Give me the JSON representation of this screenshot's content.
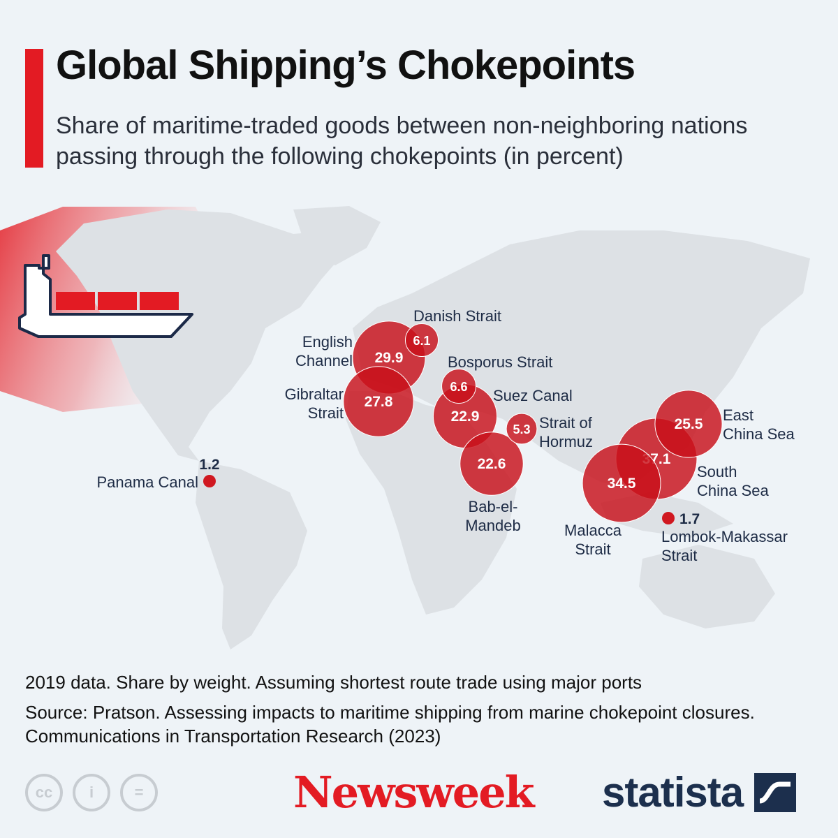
{
  "title": "Global Shipping’s Chokepoints",
  "subtitle": "Share of maritime-traded goods between non-neighboring nations passing through the following chokepoints (in percent)",
  "chart_data": {
    "type": "bubble-map",
    "unit": "percent",
    "points": [
      {
        "name": "Danish Strait",
        "value": 6.1,
        "value_label": "6.1"
      },
      {
        "name": "English Channel",
        "value": 29.9,
        "value_label": "29.9"
      },
      {
        "name": "Gibraltar Strait",
        "value": 27.8,
        "value_label": "27.8"
      },
      {
        "name": "Bosporus Strait",
        "value": 6.6,
        "value_label": "6.6"
      },
      {
        "name": "Suez Canal",
        "value": 22.9,
        "value_label": "22.9"
      },
      {
        "name": "Strait of Hormuz",
        "value": 5.3,
        "value_label": "5.3"
      },
      {
        "name": "Bab-el-Mandeb",
        "value": 22.6,
        "value_label": "22.6"
      },
      {
        "name": "Panama Canal",
        "value": 1.2,
        "value_label": "1.2"
      },
      {
        "name": "East China Sea",
        "value": 25.5,
        "value_label": "25.5"
      },
      {
        "name": "South China Sea",
        "value": 37.1,
        "value_label": "37.1"
      },
      {
        "name": "Malacca Strait",
        "value": 34.5,
        "value_label": "34.5"
      },
      {
        "name": "Lombok-Makassar Strait",
        "value": 1.7,
        "value_label": "1.7"
      }
    ],
    "labels": {
      "Danish Strait": [
        "Danish Strait"
      ],
      "English Channel": [
        "English",
        "Channel"
      ],
      "Gibraltar Strait": [
        "Gibraltar",
        "Strait"
      ],
      "Bosporus Strait": [
        "Bosporus Strait"
      ],
      "Suez Canal": [
        "Suez Canal"
      ],
      "Strait of Hormuz": [
        "Strait of",
        "Hormuz"
      ],
      "Bab-el-Mandeb": [
        "Bab-el-",
        "Mandeb"
      ],
      "Panama Canal": [
        "Panama Canal"
      ],
      "East China Sea": [
        "East",
        "China Sea"
      ],
      "South China Sea": [
        "South",
        "China Sea"
      ],
      "Malacca Strait": [
        "Malacca",
        "Strait"
      ],
      "Lombok-Makassar Strait": [
        "Lombok-Makassar",
        "Strait"
      ]
    },
    "bubble_color": "#c8101a",
    "accent_color": "#e31b23"
  },
  "footnote": "2019 data. Share by weight. Assuming shortest route trade using major ports",
  "source": "Source: Pratson. Assessing impacts to maritime shipping from marine chokepoint closures. Communications in Transportation Research (2023)",
  "license_icons": [
    "cc-icon",
    "attribution-icon",
    "no-derivatives-icon"
  ],
  "license_icon_glyphs": [
    "cc",
    "i",
    "="
  ],
  "branding": {
    "newsweek": "Newsweek",
    "statista": "statista"
  }
}
